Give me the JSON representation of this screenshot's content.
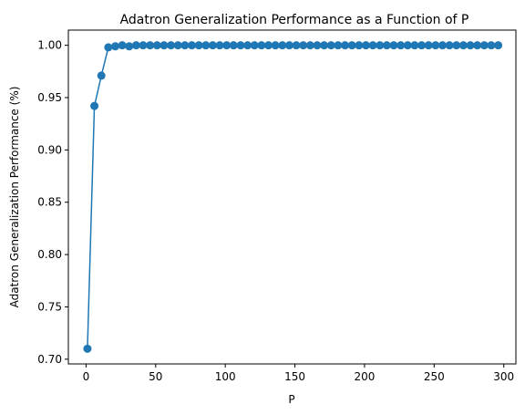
{
  "chart_data": {
    "type": "line",
    "title": "Adatron Generalization Performance as a Function of P",
    "xlabel": "P",
    "ylabel": "Adatron Generalization Performance (%)",
    "xlim": [
      -12.7,
      308.7
    ],
    "ylim": [
      0.6955,
      1.0145
    ],
    "xticks": [
      0,
      50,
      100,
      150,
      200,
      250,
      300
    ],
    "yticks": [
      0.7,
      0.75,
      0.8,
      0.85,
      0.9,
      0.95,
      1.0
    ],
    "xtick_labels": [
      "0",
      "50",
      "100",
      "150",
      "200",
      "250",
      "300"
    ],
    "ytick_labels": [
      "0.70",
      "0.75",
      "0.80",
      "0.85",
      "0.90",
      "0.95",
      "1.00"
    ],
    "grid": false,
    "series": [
      {
        "color": "#1f77b4",
        "marker": "circle",
        "x": [
          1,
          6,
          11,
          16,
          21,
          26,
          31,
          36,
          41,
          46,
          51,
          56,
          61,
          66,
          71,
          76,
          81,
          86,
          91,
          96,
          101,
          106,
          111,
          116,
          121,
          126,
          131,
          136,
          141,
          146,
          151,
          156,
          161,
          166,
          171,
          176,
          181,
          186,
          191,
          196,
          201,
          206,
          211,
          216,
          221,
          226,
          231,
          236,
          241,
          246,
          251,
          256,
          261,
          266,
          271,
          276,
          281,
          286,
          291,
          296
        ],
        "y": [
          0.71,
          0.942,
          0.971,
          0.998,
          0.999,
          1.0,
          0.999,
          1.0,
          1.0,
          1.0,
          1.0,
          1.0,
          1.0,
          1.0,
          1.0,
          1.0,
          1.0,
          1.0,
          1.0,
          1.0,
          1.0,
          1.0,
          1.0,
          1.0,
          1.0,
          1.0,
          1.0,
          1.0,
          1.0,
          1.0,
          1.0,
          1.0,
          1.0,
          1.0,
          1.0,
          1.0,
          1.0,
          1.0,
          1.0,
          1.0,
          1.0,
          1.0,
          1.0,
          1.0,
          1.0,
          1.0,
          1.0,
          1.0,
          1.0,
          1.0,
          1.0,
          1.0,
          1.0,
          1.0,
          1.0,
          1.0,
          1.0,
          1.0,
          1.0,
          1.0
        ]
      }
    ]
  }
}
